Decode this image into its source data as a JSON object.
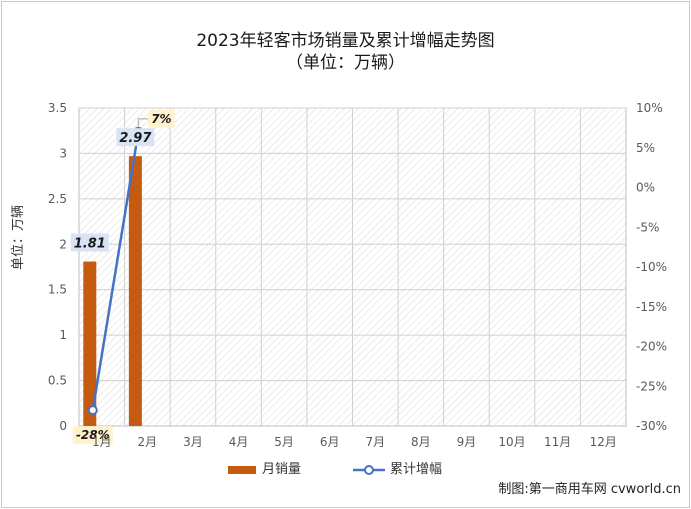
{
  "title": "2023年轻客市场销量及累计增幅走势图",
  "subtitle": "（单位：万辆）",
  "credit": "制图:第一商用车网 cvworld.cn",
  "chart_data": {
    "type": "bar",
    "categories": [
      "1月",
      "2月",
      "3月",
      "4月",
      "5月",
      "6月",
      "7月",
      "8月",
      "9月",
      "10月",
      "11月",
      "12月"
    ],
    "series": [
      {
        "name": "月销量",
        "kind": "bar",
        "axis": "left",
        "color": "#C55A11",
        "values": [
          1.81,
          2.97,
          null,
          null,
          null,
          null,
          null,
          null,
          null,
          null,
          null,
          null
        ],
        "labels": [
          "1.81",
          "2.97"
        ]
      },
      {
        "name": "累计增幅",
        "kind": "line",
        "axis": "right",
        "color": "#4472C4",
        "values": [
          -28,
          7,
          null,
          null,
          null,
          null,
          null,
          null,
          null,
          null,
          null,
          null
        ],
        "labels": [
          "-28%",
          "7%"
        ]
      }
    ],
    "ylabel": "单位：万辆",
    "ylim": [
      0,
      3.5
    ],
    "yticks": [
      "0",
      "0.5",
      "1",
      "1.5",
      "2",
      "2.5",
      "3",
      "3.5"
    ],
    "y2lim": [
      -30,
      10
    ],
    "y2ticks": [
      "-30%",
      "-25%",
      "-20%",
      "-15%",
      "-10%",
      "-5%",
      "0%",
      "5%",
      "10%"
    ],
    "grid": true,
    "legend": "bottom"
  }
}
